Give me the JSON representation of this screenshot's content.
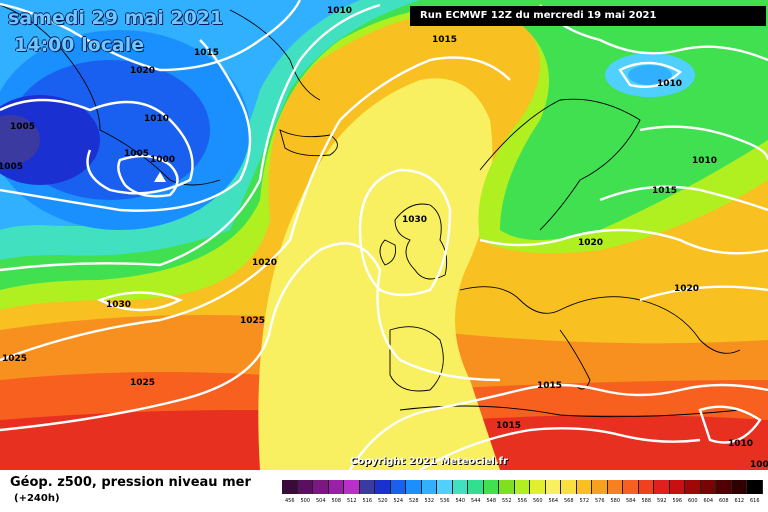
{
  "title": {
    "date": "samedi 29 mai 2021",
    "time": "14:00 locale",
    "run": "Run ECMWF 12Z du mercredi 19 mai 2021"
  },
  "footer": {
    "product": "Géop. z500, pression niveau mer",
    "lead": "(+240h)",
    "copyright": "Copyright 2021 Meteociel.fr"
  },
  "legend": {
    "ticks": [
      "456",
      "500",
      "504",
      "508",
      "512",
      "516",
      "520",
      "524",
      "528",
      "532",
      "536",
      "540",
      "544",
      "548",
      "552",
      "556",
      "560",
      "564",
      "568",
      "572",
      "576",
      "580",
      "584",
      "588",
      "592",
      "596",
      "600",
      "604",
      "608",
      "612",
      "616"
    ],
    "colors": [
      "#3a0a3a",
      "#5a1060",
      "#7a1880",
      "#9a20a8",
      "#b830c8",
      "#3a3aa0",
      "#1a30d0",
      "#1a60f0",
      "#1a90ff",
      "#30b0ff",
      "#50d0ff",
      "#40e0c0",
      "#30e090",
      "#40e050",
      "#80e020",
      "#b0f020",
      "#e0f030",
      "#f8f060",
      "#f8e040",
      "#f8c020",
      "#f8a020",
      "#f88020",
      "#f86020",
      "#f04020",
      "#e02020",
      "#c81010",
      "#a00808",
      "#780404",
      "#500202",
      "#300000",
      "#000000"
    ]
  },
  "pressure_labels": [
    "1010",
    "1015",
    "1020",
    "1005",
    "1010",
    "1005",
    "1000",
    "1005",
    "1015",
    "1010",
    "1010",
    "1015",
    "1030",
    "1020",
    "1020",
    "1030",
    "1025",
    "1025",
    "1025",
    "1020",
    "1015",
    "1015",
    "1010",
    "1005"
  ],
  "lows": [
    "L"
  ]
}
